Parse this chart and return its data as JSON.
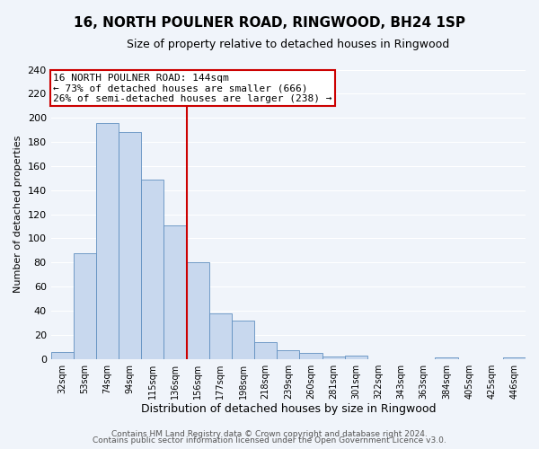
{
  "title": "16, NORTH POULNER ROAD, RINGWOOD, BH24 1SP",
  "subtitle": "Size of property relative to detached houses in Ringwood",
  "xlabel": "Distribution of detached houses by size in Ringwood",
  "ylabel": "Number of detached properties",
  "bar_color": "#c8d8ee",
  "bar_edge_color": "#6090c0",
  "bin_labels": [
    "32sqm",
    "53sqm",
    "74sqm",
    "94sqm",
    "115sqm",
    "136sqm",
    "156sqm",
    "177sqm",
    "198sqm",
    "218sqm",
    "239sqm",
    "260sqm",
    "281sqm",
    "301sqm",
    "322sqm",
    "343sqm",
    "363sqm",
    "384sqm",
    "405sqm",
    "425sqm",
    "446sqm"
  ],
  "bar_heights": [
    6,
    88,
    196,
    188,
    149,
    111,
    80,
    38,
    32,
    14,
    7,
    5,
    2,
    3,
    0,
    0,
    0,
    1,
    0,
    0,
    1
  ],
  "vline_x": 5.5,
  "vline_color": "#cc0000",
  "annotation_line1": "16 NORTH POULNER ROAD: 144sqm",
  "annotation_line2": "← 73% of detached houses are smaller (666)",
  "annotation_line3": "26% of semi-detached houses are larger (238) →",
  "annotation_box_color": "#ffffff",
  "annotation_box_edge_color": "#cc0000",
  "ylim": [
    0,
    240
  ],
  "yticks": [
    0,
    20,
    40,
    60,
    80,
    100,
    120,
    140,
    160,
    180,
    200,
    220,
    240
  ],
  "footer_line1": "Contains HM Land Registry data © Crown copyright and database right 2024.",
  "footer_line2": "Contains public sector information licensed under the Open Government Licence v3.0.",
  "background_color": "#f0f4fa",
  "grid_color": "#ffffff",
  "title_fontsize": 11,
  "subtitle_fontsize": 9,
  "annotation_fontsize": 8,
  "footer_fontsize": 6.5,
  "ylabel_fontsize": 8,
  "xlabel_fontsize": 9
}
